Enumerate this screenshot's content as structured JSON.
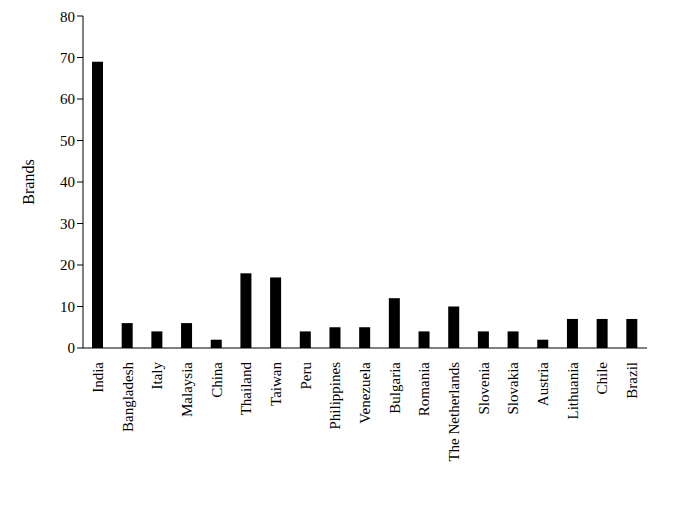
{
  "chart_data": {
    "type": "bar",
    "y_label": "Brands",
    "categories": [
      "India",
      "Bangladesh",
      "Italy",
      "Malaysia",
      "China",
      "Thailand",
      "Taiwan",
      "Peru",
      "Philippines",
      "Venezuela",
      "Bulgaria",
      "Romania",
      "The Netherlands",
      "Slovenia",
      "Slovakia",
      "Austria",
      "Lithuania",
      "Chile",
      "Brazil"
    ],
    "values": [
      69,
      6,
      4,
      6,
      2,
      18,
      17,
      4,
      5,
      5,
      12,
      4,
      10,
      4,
      4,
      2,
      7,
      7,
      7
    ],
    "color": "#000000",
    "ylim": [
      0,
      80
    ],
    "yticks": [
      0,
      10,
      20,
      30,
      40,
      50,
      60,
      70,
      80
    ],
    "grid": false
  }
}
